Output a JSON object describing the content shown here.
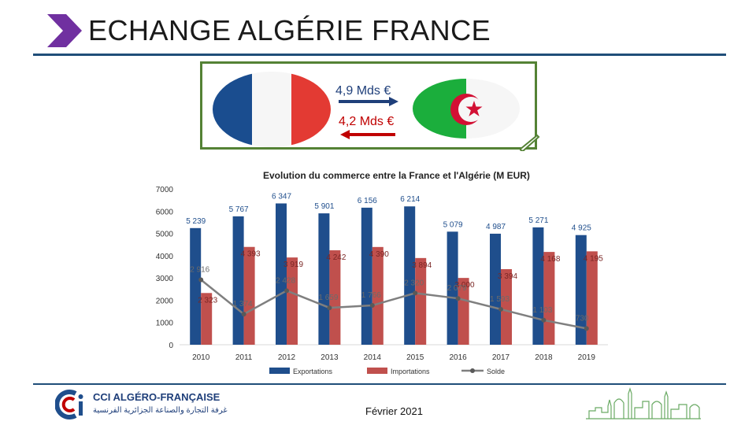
{
  "slide": {
    "title": "ECHANGE ALGÉRIE FRANCE",
    "date": "Février 2021"
  },
  "trade": {
    "export_label": "4,9 Mds €",
    "import_label": "4,2 Mds €",
    "export_color": "#1f3f7a",
    "import_color": "#c00000"
  },
  "organization": {
    "name": "CCI ALGÉRO-FRANÇAISE",
    "arabic_name": "غرفة التجارة والصناعة الجزائرية الفرنسية"
  },
  "colors": {
    "accent": "#1f4e79",
    "box_border": "#548235",
    "title_arrow": "#7030a0",
    "export_bar": "#1f4e8c",
    "import_bar": "#c0504d",
    "balance_line": "#7f7f7f"
  },
  "chart_data": {
    "type": "bar",
    "title": "Evolution du commerce  entre la France et l'Algérie (M EUR)",
    "categories": [
      "2010",
      "2011",
      "2012",
      "2013",
      "2014",
      "2015",
      "2016",
      "2017",
      "2018",
      "2019"
    ],
    "series": [
      {
        "name": "Exportations",
        "type": "bar",
        "values": [
          5239,
          5767,
          6347,
          5901,
          6156,
          6214,
          5079,
          4987,
          5271,
          4925
        ],
        "labels": [
          "5 239",
          "5 767",
          "6 347",
          "5 901",
          "6 156",
          "6 214",
          "5 079",
          "4 987",
          "5 271",
          "4 925"
        ]
      },
      {
        "name": "Importations",
        "type": "bar",
        "values": [
          2323,
          4393,
          3919,
          4242,
          4390,
          3894,
          3000,
          3394,
          4168,
          4195
        ],
        "labels": [
          "2 323",
          "4 393",
          "3 919",
          "4 242",
          "4 390",
          "3 894",
          "3 000",
          "3 394",
          "4 168",
          "4 195"
        ]
      },
      {
        "name": "Solde",
        "type": "line",
        "values": [
          2916,
          1374,
          2428,
          1659,
          1766,
          2320,
          2079,
          1593,
          1103,
          730
        ],
        "labels": [
          "2 916",
          "1 374",
          "2 428",
          "1 659",
          "1 766",
          "2 320",
          "2 079",
          "1 593",
          "1 103",
          "730"
        ]
      }
    ],
    "ylim": [
      0,
      7000
    ],
    "yticks": [
      "0",
      "1000",
      "2000",
      "3000",
      "4000",
      "5000",
      "6000",
      "7000"
    ],
    "legend_position": "bottom",
    "grid": false
  }
}
